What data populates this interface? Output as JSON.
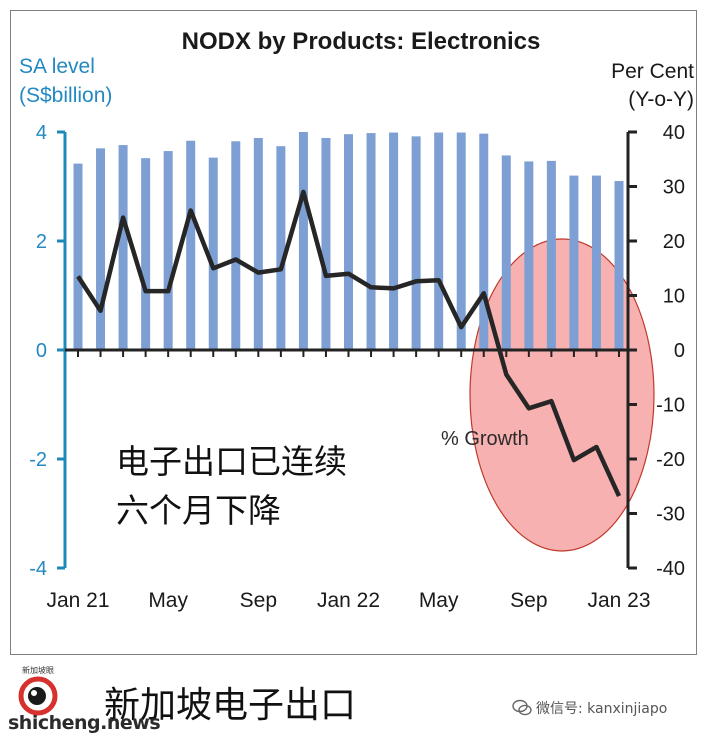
{
  "chart_data": {
    "type": "bar+line",
    "title": "NODX by Products: Electronics",
    "left_axis_label": [
      "SA level",
      "(S$billion)"
    ],
    "right_axis_label": [
      "Per Cent",
      "(Y-o-Y)"
    ],
    "left_ylim": [
      -4,
      4
    ],
    "left_ticks": [
      "4",
      "2",
      "0",
      "-2",
      "-4"
    ],
    "right_ylim": [
      -40,
      40
    ],
    "right_ticks": [
      "40",
      "30",
      "20",
      "10",
      "0",
      "-10",
      "-20",
      "-30",
      "-40"
    ],
    "x_tick_labels": [
      "Jan 21",
      "May",
      "Sep",
      "Jan 22",
      "May",
      "Sep",
      "Jan 23"
    ],
    "categories": [
      "Jan 21",
      "Feb 21",
      "Mar 21",
      "Apr 21",
      "May 21",
      "Jun 21",
      "Jul 21",
      "Aug 21",
      "Sep 21",
      "Oct 21",
      "Nov 21",
      "Dec 21",
      "Jan 22",
      "Feb 22",
      "Mar 22",
      "Apr 22",
      "May 22",
      "Jun 22",
      "Jul 22",
      "Aug 22",
      "Sep 22",
      "Oct 22",
      "Nov 22",
      "Dec 22",
      "Jan 23"
    ],
    "series": [
      {
        "type": "bar",
        "axis": "left",
        "values": [
          3.42,
          3.7,
          3.76,
          3.52,
          3.65,
          3.84,
          3.53,
          3.83,
          3.89,
          3.74,
          4.0,
          3.89,
          3.96,
          3.98,
          3.99,
          3.92,
          3.99,
          3.99,
          3.97,
          3.57,
          3.46,
          3.47,
          3.2,
          3.2,
          3.1
        ]
      },
      {
        "type": "line",
        "axis": "right",
        "name": "% Growth",
        "values": [
          13.5,
          7.2,
          24.3,
          10.8,
          10.8,
          25.6,
          15.0,
          16.6,
          14.2,
          14.8,
          29.0,
          13.6,
          14.0,
          11.5,
          11.3,
          12.6,
          12.8,
          4.2,
          10.4,
          -4.5,
          -10.7,
          -9.4,
          -20.2,
          -17.8,
          -26.8
        ]
      }
    ],
    "annotations": {
      "series_label": "% Growth",
      "note_line1": "电子出口已连续",
      "note_line2": "六个月下降"
    },
    "colors": {
      "bars": "#7d9fd3",
      "line": "#262626",
      "axis": "#1e88b8",
      "highlight": "#f7a3a3"
    }
  },
  "footer": {
    "title": "新加坡电子出口",
    "site": "shicheng.news",
    "wechat": "微信号: kanxinjiapo",
    "logo_text": "新加坡眼"
  }
}
